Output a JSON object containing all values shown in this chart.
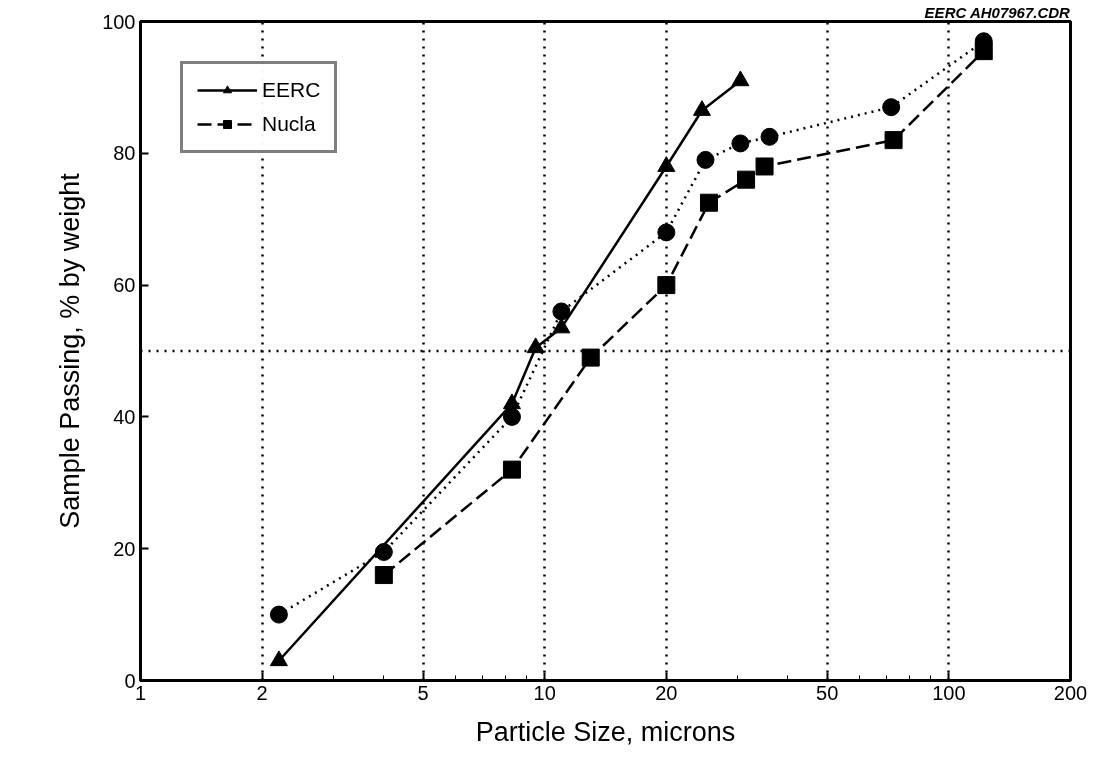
{
  "chart_data": {
    "type": "line",
    "xlabel": "Particle Size, microns",
    "ylabel": "Sample Passing, % by weight",
    "annotations": [
      "EERC AH07967.CDR"
    ],
    "log": "x",
    "xlim": [
      1,
      200
    ],
    "xticks": [
      1,
      2,
      5,
      10,
      20,
      50,
      100,
      200
    ],
    "ylim": [
      0,
      100
    ],
    "yticks": [
      0,
      20,
      40,
      60,
      80,
      100
    ],
    "grid": "x",
    "legend": "top left",
    "ref_lines": [
      {
        "axis": "y",
        "value": 50,
        "line_style": "dotted",
        "color": "#000000"
      }
    ],
    "series": [
      {
        "name": "EERC",
        "color": "#000000",
        "marker": "triangle",
        "line_style": "solid",
        "x": [
          2.2,
          4,
          8.3,
          9.5,
          11,
          20,
          24.5,
          30.5
        ],
        "values": [
          3,
          null,
          42,
          50.5,
          53.5,
          78,
          86.5,
          91
        ]
      },
      {
        "name": "Nucla",
        "color": "#000000",
        "marker": "square",
        "line_style": "dashed",
        "x": [
          4,
          8.3,
          13,
          20,
          25.5,
          31.5,
          35,
          73,
          122
        ],
        "values": [
          16,
          32,
          49,
          60,
          72.5,
          76,
          78,
          82,
          95.5
        ]
      },
      {
        "color": "#000000",
        "marker": "circle",
        "line_style": "dotted",
        "x": [
          2.2,
          4,
          8.3,
          11,
          20,
          25,
          30.5,
          36,
          72,
          122
        ],
        "values": [
          10,
          19.5,
          40,
          56,
          68,
          79,
          81.5,
          82.5,
          87,
          97
        ]
      }
    ]
  }
}
